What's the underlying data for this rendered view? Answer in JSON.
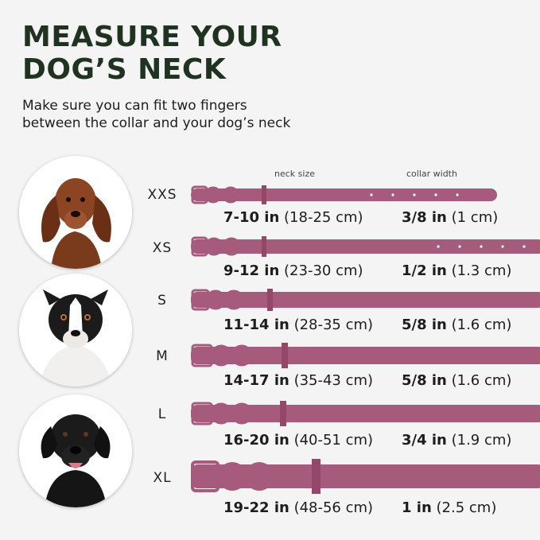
{
  "title_line1": "MEASURE YOUR",
  "title_line2": "DOG’S  NECK",
  "subtitle_line1": "Make sure you can fit two fingers",
  "subtitle_line2": "between the collar and your dog’s neck",
  "header_neck": "neck size",
  "header_width": "collar width",
  "collar_color": "#a65a7c",
  "sizes": [
    {
      "label": "XXS",
      "neck_bold": "7-10 in",
      "neck_rest": "(18-25 cm)",
      "width_bold": "3/8 in",
      "width_rest": "(1 cm)"
    },
    {
      "label": "XS",
      "neck_bold": "9-12 in",
      "neck_rest": "(23-30 cm)",
      "width_bold": "1/2 in",
      "width_rest": "(1.3 cm)"
    },
    {
      "label": "S",
      "neck_bold": "11-14 in",
      "neck_rest": "(28-35 cm)",
      "width_bold": "5/8 in",
      "width_rest": "(1.6 cm)"
    },
    {
      "label": "M",
      "neck_bold": "14-17 in",
      "neck_rest": "(35-43 cm)",
      "width_bold": "5/8 in",
      "width_rest": "(1.6 cm)"
    },
    {
      "label": "L",
      "neck_bold": "16-20 in",
      "neck_rest": "(40-51 cm)",
      "width_bold": "3/4 in",
      "width_rest": "(1.9 cm)"
    },
    {
      "label": "XL",
      "neck_bold": "19-22 in",
      "neck_rest": "(48-56 cm)",
      "width_bold": "1 in",
      "width_rest": "(2.5 cm)"
    }
  ],
  "dogs": [
    "dachshund-photo",
    "australian-shepherd-photo",
    "black-labrador-photo"
  ]
}
